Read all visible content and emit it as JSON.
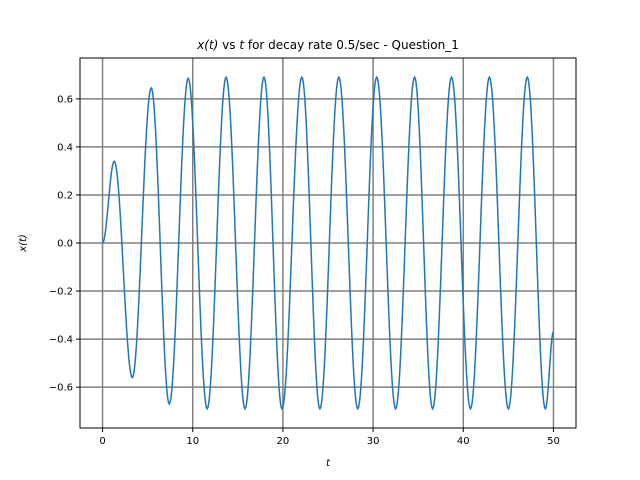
{
  "chart_data": {
    "type": "line",
    "title": "x(t) vs t for decay rate 0.5/sec - Question_1",
    "title_parts": {
      "x_of_t": "x(t)",
      "rest_vs": " vs ",
      "t": "t",
      "rest_tail": " for decay rate 0.5/sec - Question_1"
    },
    "xlabel": "t",
    "ylabel": "x(t)",
    "xlim": [
      -2.5,
      52.5
    ],
    "ylim": [
      -0.77,
      0.77
    ],
    "xticks": [
      0,
      10,
      20,
      30,
      40,
      50
    ],
    "xtick_labels": [
      "0",
      "10",
      "20",
      "30",
      "40",
      "50"
    ],
    "yticks": [
      -0.6,
      -0.4,
      -0.2,
      0.0,
      0.2,
      0.4,
      0.6
    ],
    "ytick_labels": [
      "−0.6",
      "−0.4",
      "−0.2",
      "0.0",
      "0.2",
      "0.4",
      "0.6"
    ],
    "grid": true,
    "grid_color": "#808080",
    "series_color": "#1f77b4",
    "series": [
      {
        "x": [
          0.0,
          1.3,
          3.3,
          5.4,
          7.4,
          9.5,
          11.6,
          13.7,
          15.8,
          17.9,
          19.9,
          22.1,
          24.1,
          26.2,
          28.3,
          30.4,
          32.5,
          34.6,
          36.6,
          38.7,
          40.8,
          42.9,
          45.0,
          47.1,
          49.1,
          50.0
        ],
        "y": [
          0.0,
          0.34,
          -0.56,
          0.645,
          -0.67,
          0.685,
          -0.69,
          0.69,
          -0.69,
          0.69,
          -0.69,
          0.69,
          -0.69,
          0.69,
          -0.69,
          0.69,
          -0.69,
          0.69,
          -0.69,
          0.69,
          -0.69,
          0.69,
          -0.69,
          0.69,
          -0.69,
          -0.37
        ]
      }
    ]
  }
}
